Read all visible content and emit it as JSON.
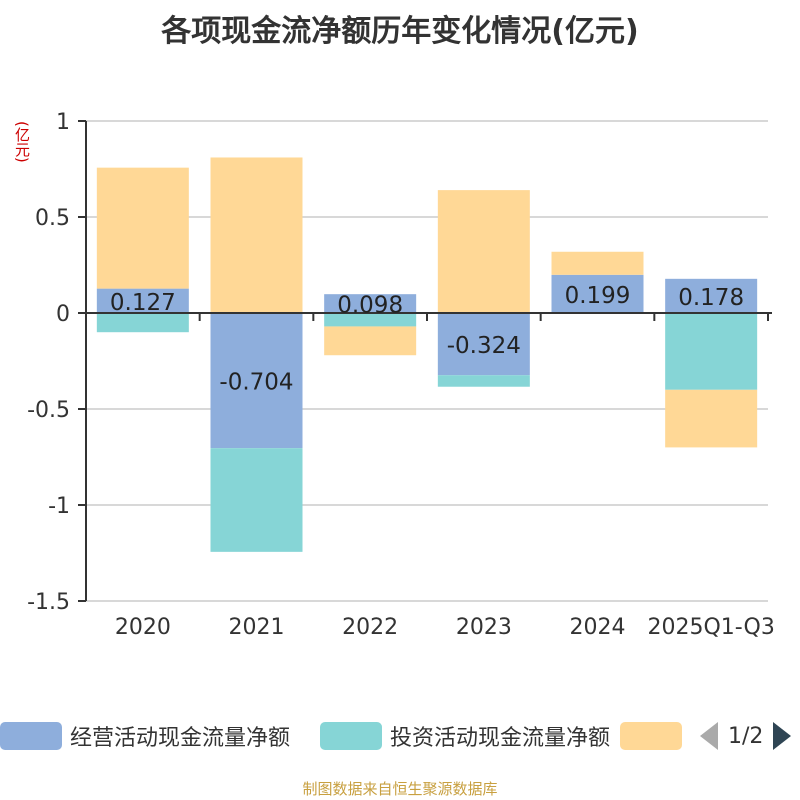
{
  "title": "各项现金流净额历年变化情况(亿元)",
  "unit_label": "(亿元)",
  "source": "制图数据来自恒生聚源数据库",
  "legend": {
    "items": [
      {
        "label": "经营活动现金流量净额",
        "color": "#8eaedc"
      },
      {
        "label": "投资活动现金流量净额",
        "color": "#86d5d6"
      },
      {
        "label": "",
        "color": "#ffd896"
      }
    ],
    "page": "1/2"
  },
  "chart_data": {
    "type": "bar",
    "stacked": true,
    "categories": [
      "2020",
      "2021",
      "2022",
      "2023",
      "2024",
      "2025Q1-Q3"
    ],
    "series": [
      {
        "name": "经营活动现金流量净额",
        "color": "#8eaedc",
        "values": [
          0.127,
          -0.704,
          0.098,
          -0.324,
          0.199,
          0.178
        ]
      },
      {
        "name": "投资活动现金流量净额",
        "color": "#86d5d6",
        "values": [
          -0.1,
          -0.54,
          -0.07,
          -0.06,
          0.0,
          -0.4
        ]
      },
      {
        "name": "",
        "color": "#ffd896",
        "values": [
          0.63,
          0.81,
          -0.15,
          0.64,
          0.12,
          -0.3
        ]
      }
    ],
    "data_labels": [
      "0.127",
      "-0.704",
      "0.098",
      "-0.324",
      "0.199",
      "0.178"
    ],
    "y_ticks": [
      "1",
      "0.5",
      "0",
      "-0.5",
      "-1",
      "-1.5"
    ],
    "ylim": [
      -1.5,
      1
    ],
    "grid": true
  }
}
